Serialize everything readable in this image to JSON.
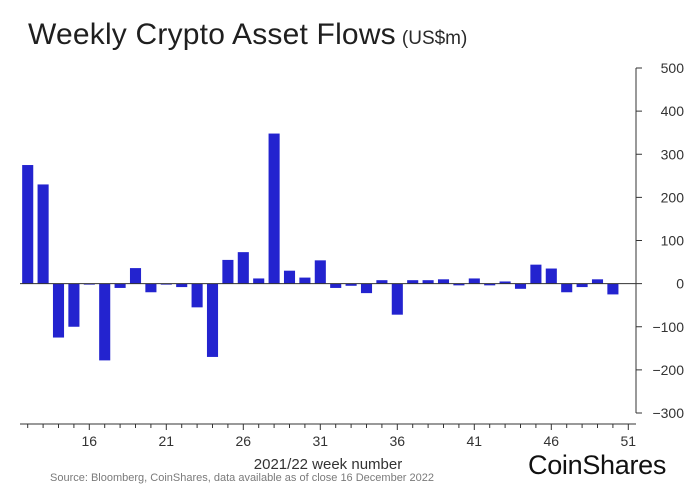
{
  "title": "Weekly Crypto Asset Flows",
  "unit": "(US$m)",
  "source": "Source: Bloomberg, CoinShares, data available as of close 16 December 2022",
  "logo_text": "CoinShares",
  "colors": {
    "bar": "#2323cf",
    "axis": "#333333",
    "text": "#1e1e1e"
  },
  "chart_data": {
    "type": "bar",
    "xlabel": "2021/22 week number",
    "ylabel": "",
    "ylim": [
      -300,
      500
    ],
    "yticks": [
      500,
      400,
      300,
      200,
      100,
      0,
      -100,
      -200,
      -300
    ],
    "y_axis_side": "right",
    "grid": false,
    "x": [
      12,
      13,
      14,
      15,
      16,
      17,
      18,
      19,
      20,
      21,
      22,
      23,
      24,
      25,
      26,
      27,
      28,
      29,
      30,
      31,
      32,
      33,
      34,
      35,
      36,
      37,
      38,
      39,
      40,
      41,
      42,
      43,
      44,
      45,
      46,
      47,
      48,
      49,
      50,
      51
    ],
    "xticks": [
      16,
      21,
      26,
      31,
      36,
      41,
      46,
      51
    ],
    "values": [
      275,
      230,
      -125,
      -100,
      -2,
      -178,
      -10,
      36,
      -20,
      -2,
      -8,
      -55,
      -170,
      55,
      73,
      12,
      348,
      30,
      14,
      54,
      -10,
      -5,
      -22,
      8,
      -72,
      8,
      8,
      10,
      -4,
      12,
      -4,
      5,
      -12,
      44,
      35,
      -20,
      -8,
      10,
      -25,
      null
    ]
  }
}
